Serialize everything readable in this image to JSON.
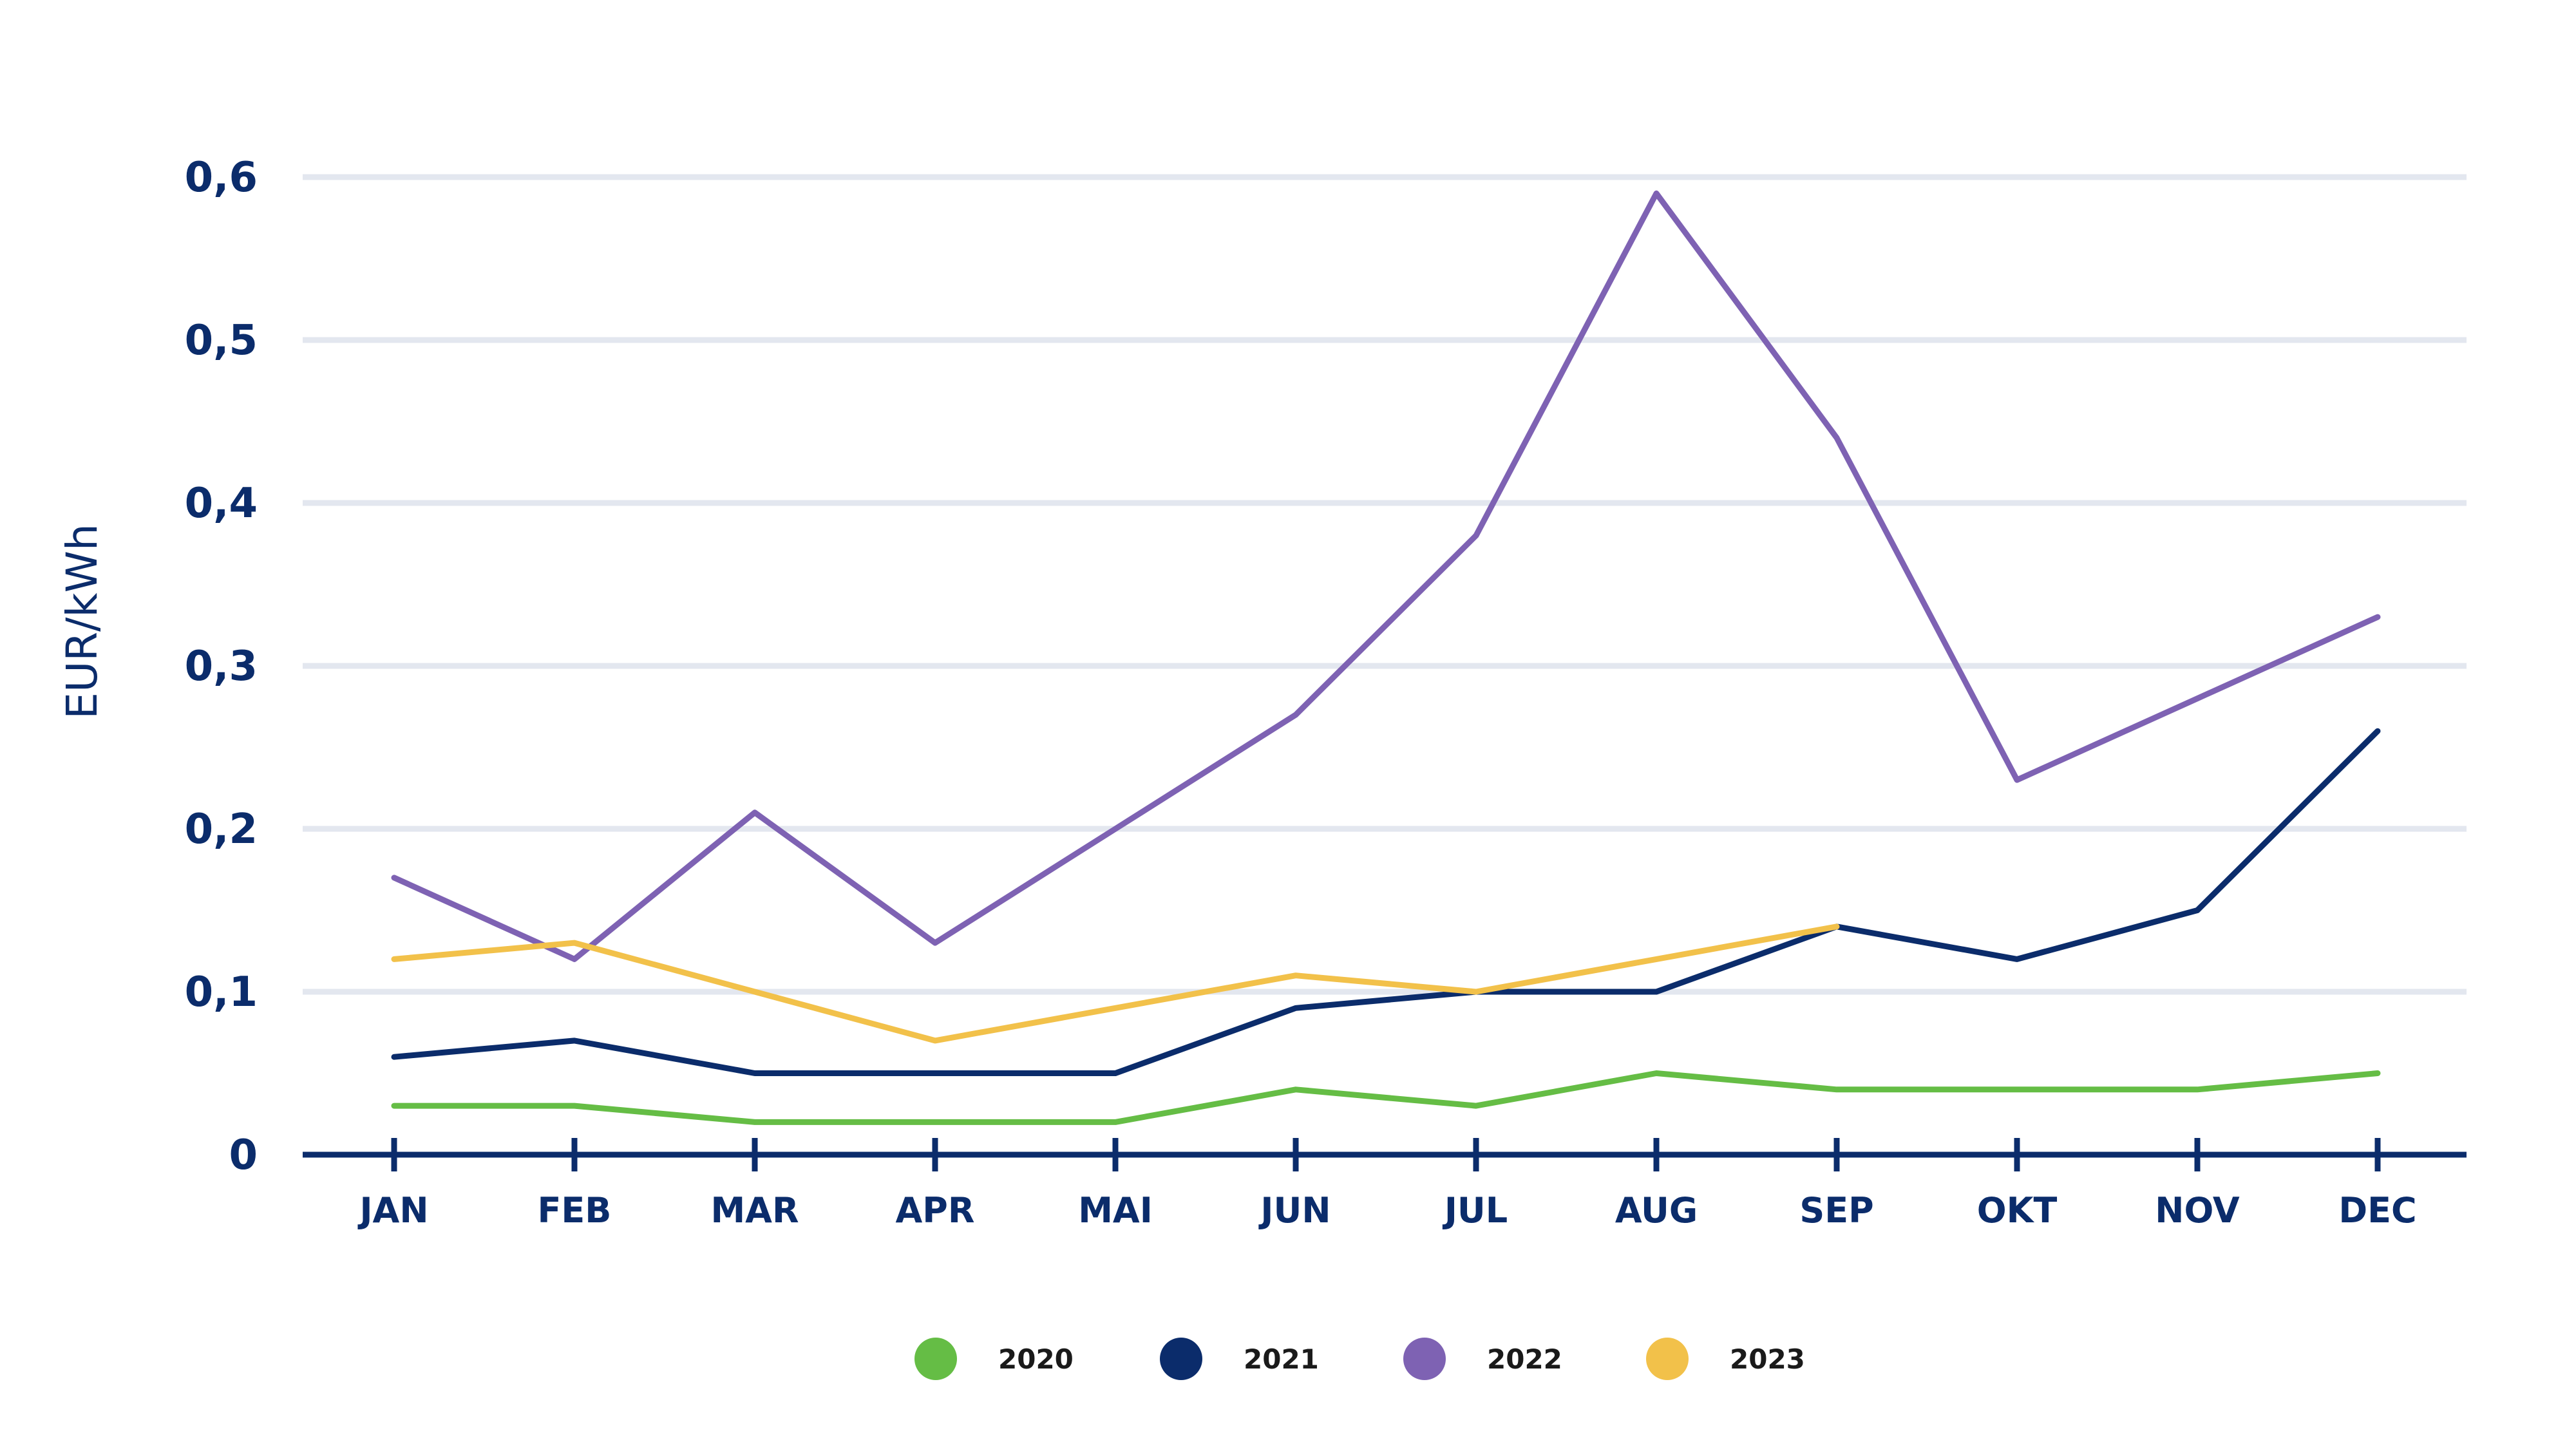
{
  "chart_data": {
    "type": "line",
    "title": "",
    "xlabel": "",
    "ylabel": "EUR/kWh",
    "categories": [
      "JAN",
      "FEB",
      "MAR",
      "APR",
      "MAI",
      "JUN",
      "JUL",
      "AUG",
      "SEP",
      "OKT",
      "NOV",
      "DEC"
    ],
    "yticks": [
      "0",
      "0,1",
      "0,2",
      "0,3",
      "0,4",
      "0,5",
      "0,6"
    ],
    "ylim": [
      0,
      0.6
    ],
    "grid": true,
    "legend_position": "bottom",
    "series": [
      {
        "name": "2020",
        "color": "#65bd45",
        "values": [
          0.03,
          0.03,
          0.02,
          0.02,
          0.02,
          0.04,
          0.03,
          0.05,
          0.04,
          0.04,
          0.04,
          0.05
        ]
      },
      {
        "name": "2021",
        "color": "#0b2c6b",
        "values": [
          0.06,
          0.07,
          0.05,
          0.05,
          0.05,
          0.09,
          0.1,
          0.1,
          0.14,
          0.12,
          0.15,
          0.26
        ]
      },
      {
        "name": "2022",
        "color": "#7e62b3",
        "values": [
          0.17,
          0.12,
          0.21,
          0.13,
          0.2,
          0.27,
          0.38,
          0.59,
          0.44,
          0.23,
          0.28,
          0.33
        ]
      },
      {
        "name": "2023",
        "color": "#f2c14a",
        "values": [
          0.12,
          0.13,
          0.1,
          0.07,
          0.09,
          0.11,
          0.1,
          0.12,
          0.14,
          null,
          null,
          null
        ]
      }
    ]
  }
}
